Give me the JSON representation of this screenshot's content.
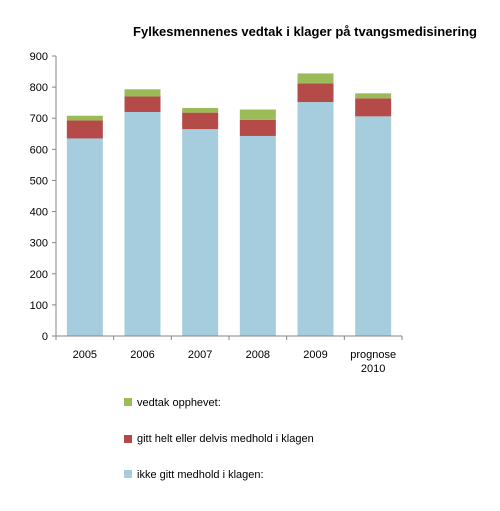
{
  "chart_data": {
    "type": "bar",
    "stacked": true,
    "title": "Fylkesmennenes vedtak i klager på tvangsmedisinering",
    "xlabel": "",
    "ylabel": "",
    "ylim": [
      0,
      900
    ],
    "yticks": [
      0,
      100,
      200,
      300,
      400,
      500,
      600,
      700,
      800,
      900
    ],
    "grid": false,
    "legend_position": "bottom",
    "categories": [
      "2005",
      "2006",
      "2007",
      "2008",
      "2009",
      "prognose 2010"
    ],
    "series": [
      {
        "name": "ikke gitt medhold i klagen:",
        "color": "#a5cddd",
        "values": [
          635,
          720,
          665,
          643,
          752,
          706
        ]
      },
      {
        "name": "gitt helt eller delvis medhold i klagen",
        "color": "#b54b48",
        "values": [
          58,
          50,
          53,
          52,
          60,
          58
        ]
      },
      {
        "name": "vedtak opphevet:",
        "color": "#9bbb59",
        "values": [
          15,
          23,
          15,
          33,
          32,
          16
        ]
      }
    ]
  }
}
